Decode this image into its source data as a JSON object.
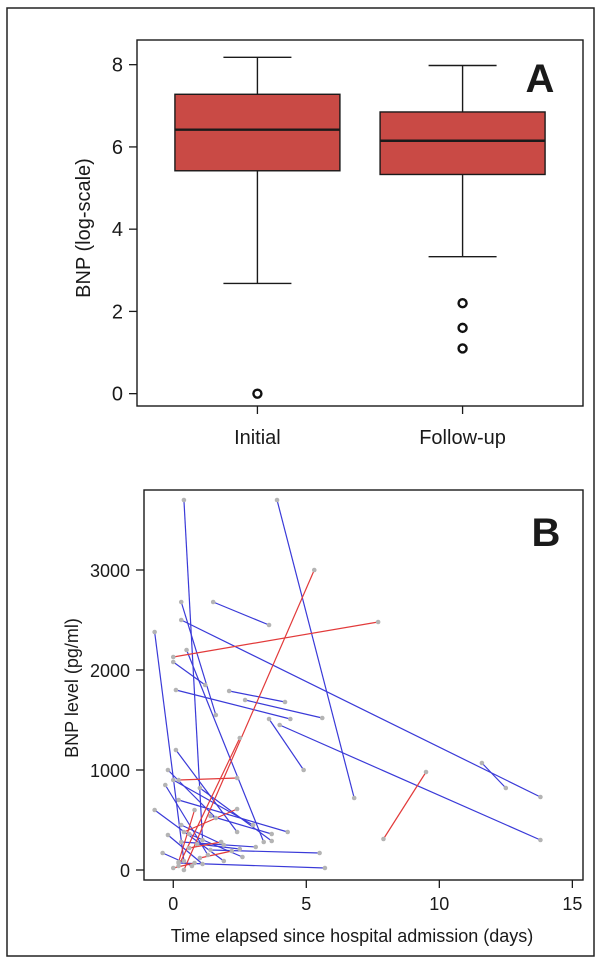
{
  "chart_data": [
    {
      "type": "box",
      "panel_label": "A",
      "ylabel": "BNP (log-scale)",
      "ylim": [
        -0.3,
        8.6
      ],
      "yticks": [
        0,
        2,
        4,
        6,
        8
      ],
      "categories": [
        "Initial",
        "Follow-up"
      ],
      "boxes": [
        {
          "category": "Initial",
          "whisker_low": 2.68,
          "q1": 5.42,
          "median": 6.42,
          "q3": 7.28,
          "whisker_high": 8.18,
          "outliers": [
            0.0
          ]
        },
        {
          "category": "Follow-up",
          "whisker_low": 3.33,
          "q1": 5.33,
          "median": 6.15,
          "q3": 6.85,
          "whisker_high": 7.98,
          "outliers": [
            2.2,
            1.6,
            1.1
          ]
        }
      ],
      "colors": {
        "box_fill": "#c94a45",
        "outlier": "#111111"
      }
    },
    {
      "type": "line",
      "panel_label": "B",
      "xlabel": "Time elapsed since hospital admission (days)",
      "ylabel": "BNP level (pg/ml)",
      "xlim": [
        -1.1,
        15.4
      ],
      "ylim": [
        -100,
        3800
      ],
      "xticks": [
        0,
        5,
        10,
        15
      ],
      "yticks": [
        0,
        1000,
        2000,
        3000
      ],
      "colors": {
        "decrease": "#3a3ad8",
        "increase": "#e23a3a",
        "point": "#b4b4b4"
      },
      "segments": [
        {
          "x": [
            0.4,
            1.1
          ],
          "y": [
            3700,
            300
          ],
          "dir": "decrease"
        },
        {
          "x": [
            3.9,
            6.8
          ],
          "y": [
            3700,
            720
          ],
          "dir": "decrease"
        },
        {
          "x": [
            0.3,
            13.8
          ],
          "y": [
            2500,
            730
          ],
          "dir": "decrease"
        },
        {
          "x": [
            1.5,
            3.6
          ],
          "y": [
            2680,
            2450
          ],
          "dir": "decrease"
        },
        {
          "x": [
            0.3,
            1.6
          ],
          "y": [
            2680,
            1550
          ],
          "dir": "decrease"
        },
        {
          "x": [
            0.1,
            4.4
          ],
          "y": [
            1800,
            1510
          ],
          "dir": "decrease"
        },
        {
          "x": [
            4.0,
            13.8
          ],
          "y": [
            1450,
            300
          ],
          "dir": "decrease"
        },
        {
          "x": [
            3.6,
            4.9
          ],
          "y": [
            1510,
            1000
          ],
          "dir": "decrease"
        },
        {
          "x": [
            -0.7,
            0.4
          ],
          "y": [
            2380,
            90
          ],
          "dir": "decrease"
        },
        {
          "x": [
            0.5,
            3.4
          ],
          "y": [
            2200,
            280
          ],
          "dir": "decrease"
        },
        {
          "x": [
            2.1,
            4.2
          ],
          "y": [
            1790,
            1680
          ],
          "dir": "decrease"
        },
        {
          "x": [
            0.0,
            1.2
          ],
          "y": [
            2080,
            1850
          ],
          "dir": "decrease"
        },
        {
          "x": [
            2.7,
            5.6
          ],
          "y": [
            1700,
            1520
          ],
          "dir": "decrease"
        },
        {
          "x": [
            11.6,
            12.5
          ],
          "y": [
            1070,
            820
          ],
          "dir": "decrease"
        },
        {
          "x": [
            0.1,
            2.4
          ],
          "y": [
            1200,
            380
          ],
          "dir": "decrease"
        },
        {
          "x": [
            0.0,
            3.0
          ],
          "y": [
            900,
            450
          ],
          "dir": "decrease"
        },
        {
          "x": [
            0.2,
            4.3
          ],
          "y": [
            700,
            380
          ],
          "dir": "decrease"
        },
        {
          "x": [
            -0.2,
            1.6
          ],
          "y": [
            1000,
            520
          ],
          "dir": "decrease"
        },
        {
          "x": [
            1.0,
            3.7
          ],
          "y": [
            820,
            290
          ],
          "dir": "decrease"
        },
        {
          "x": [
            -0.3,
            1.3
          ],
          "y": [
            850,
            150
          ],
          "dir": "decrease"
        },
        {
          "x": [
            0.3,
            3.1
          ],
          "y": [
            280,
            230
          ],
          "dir": "decrease"
        },
        {
          "x": [
            0.2,
            5.7
          ],
          "y": [
            70,
            20
          ],
          "dir": "decrease"
        },
        {
          "x": [
            -0.7,
            1.9
          ],
          "y": [
            600,
            90
          ],
          "dir": "decrease"
        },
        {
          "x": [
            1.4,
            3.7
          ],
          "y": [
            540,
            360
          ],
          "dir": "decrease"
        },
        {
          "x": [
            1.4,
            5.5
          ],
          "y": [
            200,
            170
          ],
          "dir": "decrease"
        },
        {
          "x": [
            -0.2,
            1.1
          ],
          "y": [
            350,
            60
          ],
          "dir": "decrease"
        },
        {
          "x": [
            0.3,
            1.9
          ],
          "y": [
            450,
            250
          ],
          "dir": "decrease"
        },
        {
          "x": [
            0.6,
            2.6
          ],
          "y": [
            360,
            130
          ],
          "dir": "decrease"
        },
        {
          "x": [
            -0.4,
            0.7
          ],
          "y": [
            170,
            40
          ],
          "dir": "decrease"
        },
        {
          "x": [
            0.9,
            2.5
          ],
          "y": [
            260,
            210
          ],
          "dir": "decrease"
        },
        {
          "x": [
            0.4,
            5.3
          ],
          "y": [
            0,
            3000
          ],
          "dir": "increase"
        },
        {
          "x": [
            0.0,
            7.7
          ],
          "y": [
            2130,
            2480
          ],
          "dir": "increase"
        },
        {
          "x": [
            0.2,
            2.5
          ],
          "y": [
            40,
            1320
          ],
          "dir": "increase"
        },
        {
          "x": [
            7.9,
            9.5
          ],
          "y": [
            310,
            980
          ],
          "dir": "increase"
        },
        {
          "x": [
            0.2,
            2.4
          ],
          "y": [
            900,
            920
          ],
          "dir": "increase"
        },
        {
          "x": [
            0.4,
            2.4
          ],
          "y": [
            380,
            610
          ],
          "dir": "increase"
        },
        {
          "x": [
            0.2,
            0.8
          ],
          "y": [
            80,
            600
          ],
          "dir": "increase"
        },
        {
          "x": [
            1.0,
            2.2
          ],
          "y": [
            120,
            190
          ],
          "dir": "increase"
        },
        {
          "x": [
            0.6,
            1.8
          ],
          "y": [
            220,
            280
          ],
          "dir": "increase"
        },
        {
          "x": [
            0.0,
            0.8
          ],
          "y": [
            20,
            70
          ],
          "dir": "increase"
        }
      ]
    }
  ]
}
